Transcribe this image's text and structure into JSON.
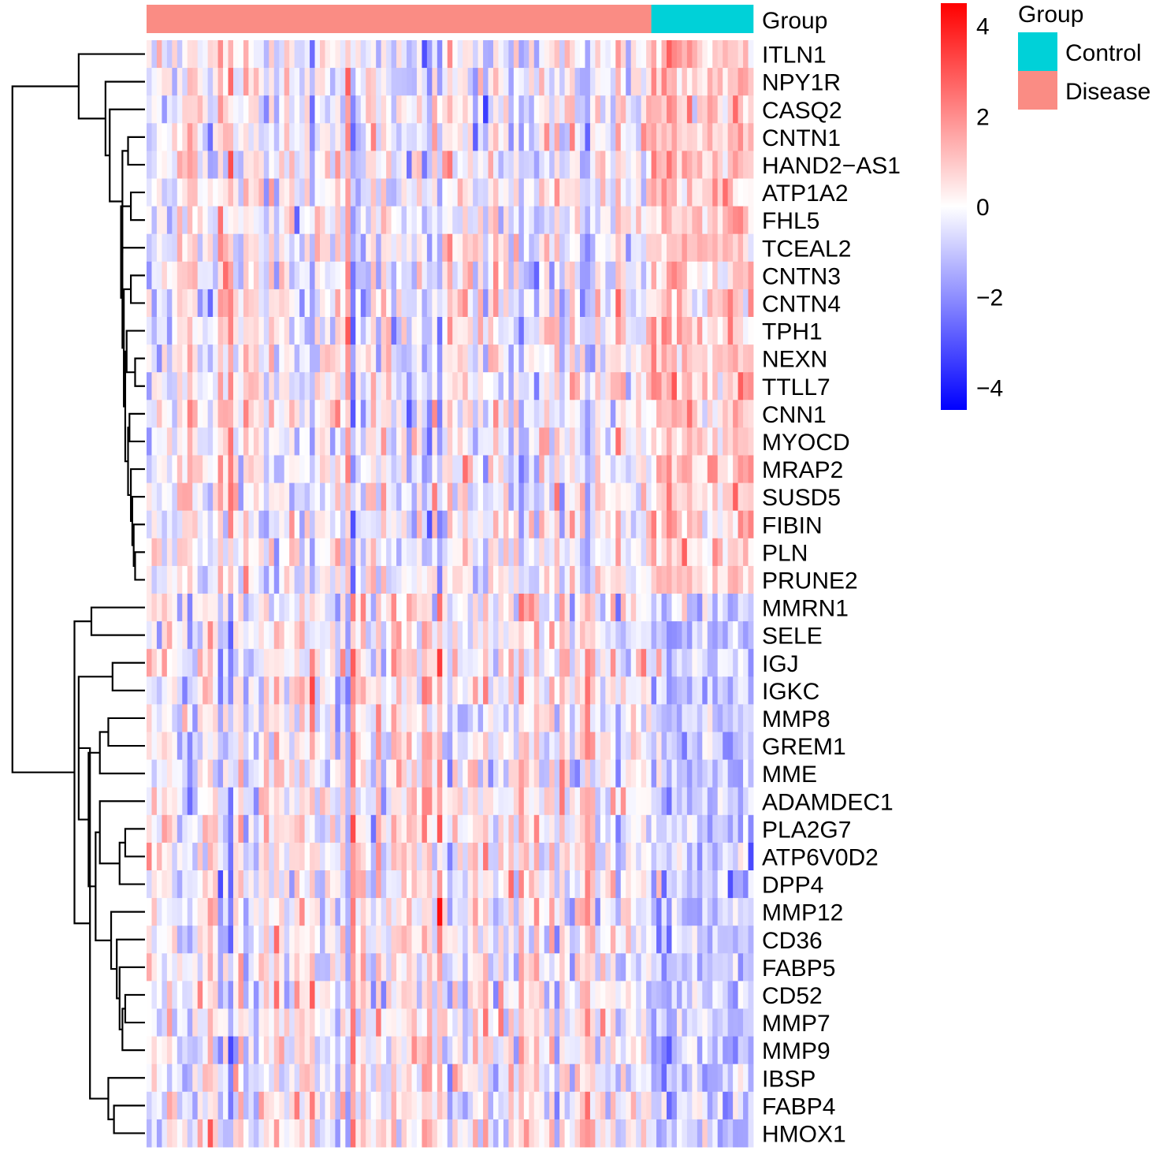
{
  "chart_data": {
    "type": "heatmap",
    "title": "",
    "annotation_track_label": "Group",
    "groups": [
      {
        "name": "Disease",
        "color": "#FA8C84",
        "samples": 99
      },
      {
        "name": "Control",
        "color": "#00D1D8",
        "samples": 20
      }
    ],
    "genes": [
      "ITLN1",
      "NPY1R",
      "CASQ2",
      "CNTN1",
      "HAND2−AS1",
      "ATP1A2",
      "FHL5",
      "TCEAL2",
      "CNTN3",
      "CNTN4",
      "TPH1",
      "NEXN",
      "TTLL7",
      "CNN1",
      "MYOCD",
      "MRAP2",
      "SUSD5",
      "FIBIN",
      "PLN",
      "PRUNE2",
      "MMRN1",
      "SELE",
      "IGJ",
      "IGKC",
      "MMP8",
      "GREM1",
      "MME",
      "ADAMDEC1",
      "PLA2G7",
      "ATP6V0D2",
      "DPP4",
      "MMP12",
      "CD36",
      "FABP5",
      "CD52",
      "MMP7",
      "MMP9",
      "IBSP",
      "FABP4",
      "HMOX1"
    ],
    "gene_trend_in_disease": {
      "down": [
        "ITLN1",
        "NPY1R",
        "CASQ2",
        "CNTN1",
        "HAND2−AS1",
        "ATP1A2",
        "FHL5",
        "TCEAL2",
        "CNTN3",
        "CNTN4",
        "TPH1",
        "NEXN",
        "TTLL7",
        "CNN1",
        "MYOCD",
        "MRAP2",
        "SUSD5",
        "FIBIN",
        "PLN",
        "PRUNE2"
      ],
      "up": [
        "MMRN1",
        "SELE",
        "IGJ",
        "IGKC",
        "MMP8",
        "GREM1",
        "MME",
        "ADAMDEC1",
        "PLA2G7",
        "ATP6V0D2",
        "DPP4",
        "MMP12",
        "CD36",
        "FABP5",
        "CD52",
        "MMP7",
        "MMP9",
        "IBSP",
        "FABP4",
        "HMOX1"
      ]
    },
    "color_scale": {
      "min": -4.5,
      "max": 4.5,
      "colors": {
        "low": "#0000FF",
        "mid": "#FFFFFF",
        "high": "#FF0000"
      },
      "ticks": [
        4,
        2,
        0,
        -2,
        -4
      ],
      "tick_labels": [
        "4",
        "2",
        "0",
        "−2",
        "−4"
      ]
    },
    "legend": {
      "title": "Group",
      "entries": [
        {
          "label": "Control",
          "color": "#00D1D8"
        },
        {
          "label": "Disease",
          "color": "#FA8C84"
        }
      ]
    },
    "dendrogram": {
      "merges": [
        [
          -4,
          -5
        ],
        [
          -6,
          -7
        ],
        [
          -9,
          -10
        ],
        [
          -12,
          -13
        ],
        [
          -11,
          4
        ],
        [
          -14,
          -15
        ],
        [
          -19,
          -20
        ],
        [
          -18,
          7
        ],
        [
          -17,
          8
        ],
        [
          -16,
          9
        ],
        [
          6,
          10
        ],
        [
          5,
          11
        ],
        [
          3,
          12
        ],
        [
          -8,
          13
        ],
        [
          2,
          14
        ],
        [
          1,
          15
        ],
        [
          -3,
          16
        ],
        [
          -2,
          17
        ],
        [
          -1,
          18
        ],
        [
          -21,
          -22
        ],
        [
          -23,
          -24
        ],
        [
          -25,
          -26
        ],
        [
          -27,
          22
        ],
        [
          -29,
          -30
        ],
        [
          -31,
          24
        ],
        [
          -28,
          25
        ],
        [
          -35,
          -36
        ],
        [
          -37,
          27
        ],
        [
          -34,
          28
        ],
        [
          -33,
          29
        ],
        [
          -32,
          30
        ],
        [
          26,
          31
        ],
        [
          23,
          32
        ],
        [
          21,
          33
        ],
        [
          -39,
          -40
        ],
        [
          -38,
          35
        ],
        [
          34,
          36
        ],
        [
          20,
          37
        ],
        [
          19,
          38
        ]
      ],
      "heights": [
        0.12,
        0.1,
        0.1,
        0.07,
        0.13,
        0.11,
        0.07,
        0.08,
        0.09,
        0.1,
        0.12,
        0.14,
        0.15,
        0.16,
        0.17,
        0.16,
        0.25,
        0.28,
        0.47,
        0.38,
        0.23,
        0.26,
        0.32,
        0.14,
        0.18,
        0.32,
        0.14,
        0.16,
        0.18,
        0.2,
        0.24,
        0.35,
        0.4,
        0.47,
        0.22,
        0.26,
        0.39,
        0.5,
        0.94
      ]
    }
  }
}
